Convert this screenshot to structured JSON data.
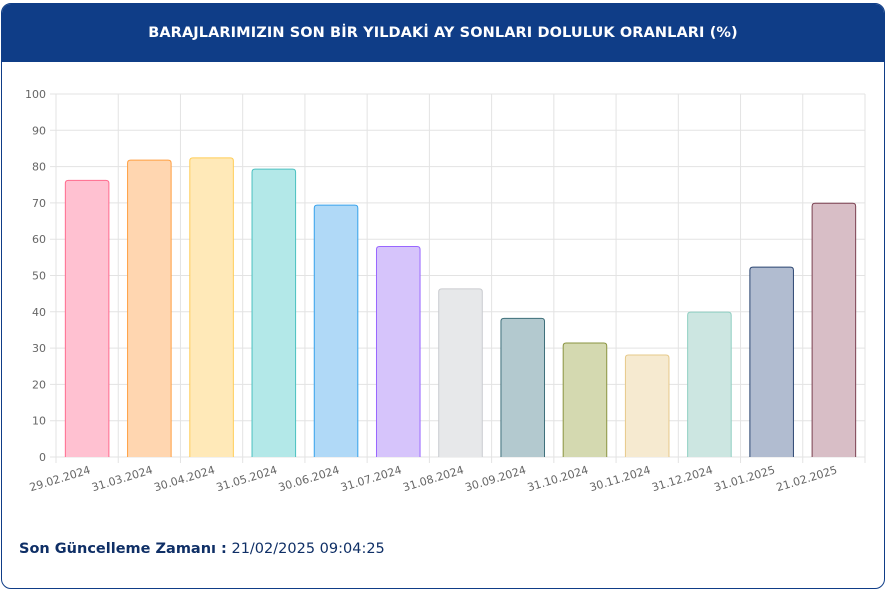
{
  "header": {
    "title": "BARAJLARIMIZIN SON BİR YILDAKİ AY SONLARI DOLULUK ORANLARI (%)"
  },
  "footer": {
    "label": "Son Güncelleme Zamanı :",
    "value": "21/02/2025 09:04:25"
  },
  "chart_data": {
    "type": "bar",
    "categories": [
      "29.02.2024",
      "31.03.2024",
      "30.04.2024",
      "31.05.2024",
      "30.06.2024",
      "31.07.2024",
      "31.08.2024",
      "30.09.2024",
      "31.10.2024",
      "30.11.2024",
      "31.12.2024",
      "31.01.2025",
      "21.02.2025"
    ],
    "values": [
      76.2,
      81.8,
      82.4,
      79.3,
      69.4,
      58.0,
      46.3,
      38.2,
      31.4,
      28.1,
      39.9,
      52.3,
      69.9
    ],
    "colors": [
      {
        "fill": "#ffc1d1",
        "stroke": "#ff6b8e"
      },
      {
        "fill": "#ffd6b0",
        "stroke": "#ff9f40"
      },
      {
        "fill": "#ffe9b8",
        "stroke": "#ffcd56"
      },
      {
        "fill": "#b3e8e8",
        "stroke": "#4bc0c0"
      },
      {
        "fill": "#b0d9f7",
        "stroke": "#36a2eb"
      },
      {
        "fill": "#d6c4fb",
        "stroke": "#9966ff"
      },
      {
        "fill": "#e7e8ea",
        "stroke": "#c9cbcf"
      },
      {
        "fill": "#b3c9cf",
        "stroke": "#3e6f7a"
      },
      {
        "fill": "#d4d9b0",
        "stroke": "#8a9440"
      },
      {
        "fill": "#f6ead0",
        "stroke": "#e6c98a"
      },
      {
        "fill": "#cce6e1",
        "stroke": "#8fcfc2"
      },
      {
        "fill": "#b1bcd0",
        "stroke": "#2a4470"
      },
      {
        "fill": "#d8bec6",
        "stroke": "#7a4050"
      }
    ],
    "ylim": [
      0,
      100
    ],
    "yticks": [
      0,
      10,
      20,
      30,
      40,
      50,
      60,
      70,
      80,
      90,
      100
    ],
    "grid": true,
    "xlabel": "",
    "ylabel": ""
  }
}
